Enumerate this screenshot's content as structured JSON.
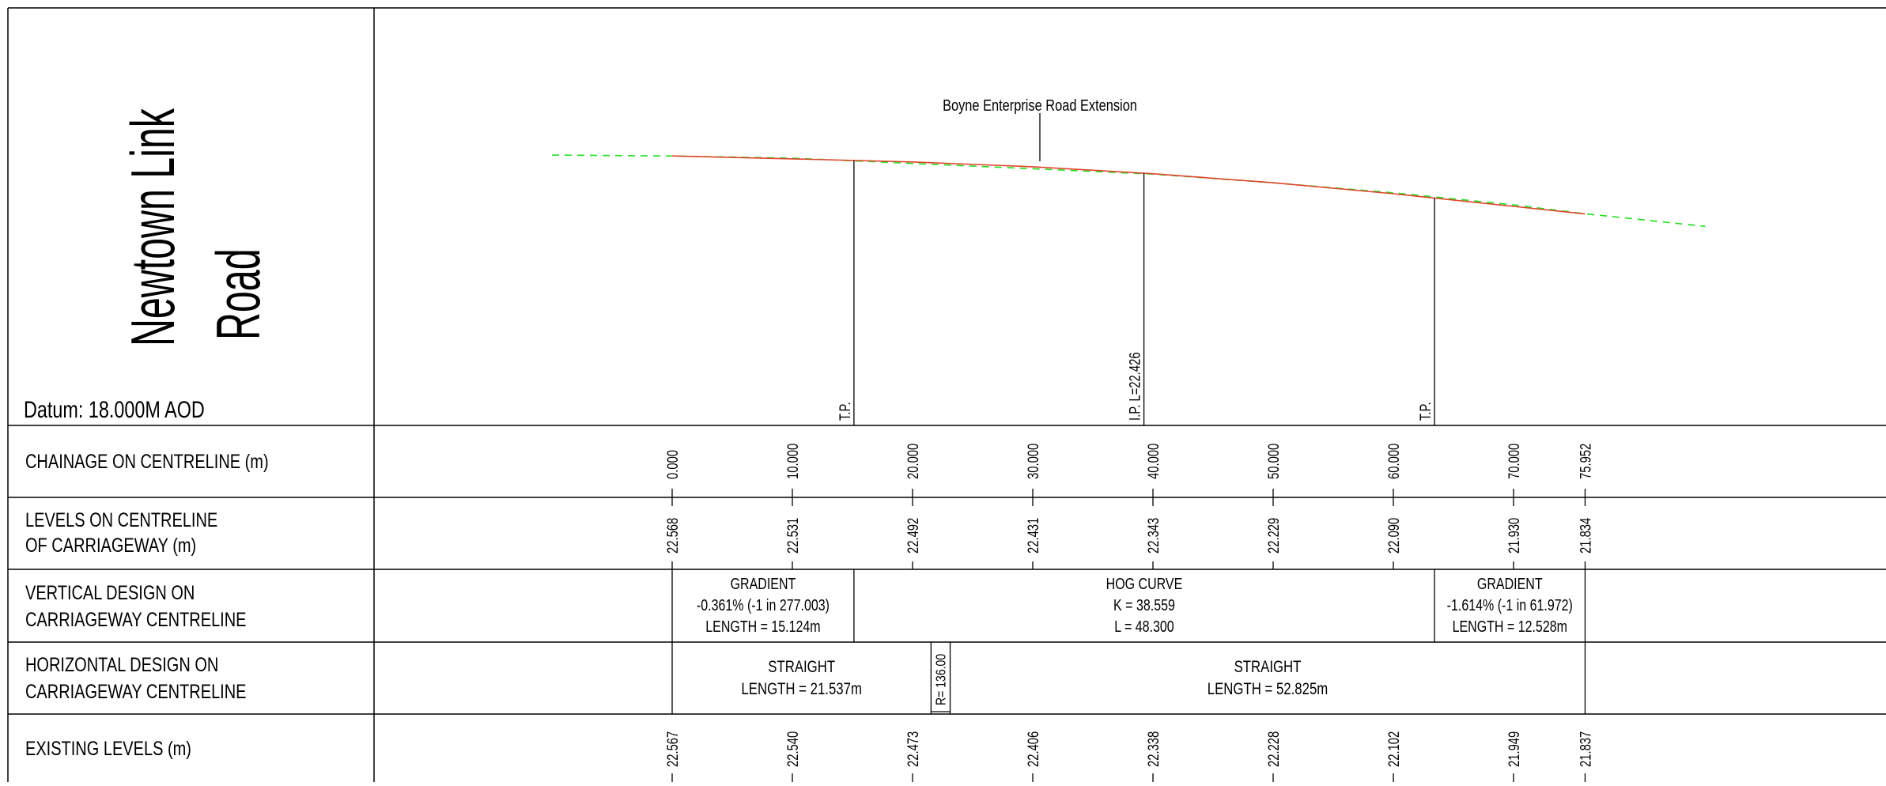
{
  "title": {
    "line1": "Newtown Link",
    "line2": "Road"
  },
  "datum": "Datum: 18.000M AOD",
  "profile": {
    "road_label": "Boyne Enterprise Road Extension",
    "design_line_color": "#e0452a",
    "existing_line_color": "#22dd22",
    "markers": [
      {
        "ch": 15.124,
        "label": "T.P."
      },
      {
        "ch": 39.25,
        "label": "I.P. L=22.426"
      },
      {
        "ch": 63.424,
        "label": "T.P."
      }
    ]
  },
  "rows": {
    "chainage_label": "CHAINAGE ON CENTRELINE (m)",
    "levels_label_1": "LEVELS ON CENTRELINE",
    "levels_label_2": "OF CARRIAGEWAY (m)",
    "vertical_label_1": "VERTICAL DESIGN ON",
    "vertical_label_2": "CARRIAGEWAY CENTRELINE",
    "horizontal_label_1": "HORIZONTAL DESIGN ON",
    "horizontal_label_2": "CARRIAGEWAY CENTRELINE",
    "existing_label": "EXISTING LEVELS (m)"
  },
  "stations": [
    {
      "ch": 0,
      "chainage": "0.000",
      "level": "22.568",
      "existing": "22.567"
    },
    {
      "ch": 10,
      "chainage": "10.000",
      "level": "22.531",
      "existing": "22.540"
    },
    {
      "ch": 20,
      "chainage": "20.000",
      "level": "22.492",
      "existing": "22.473"
    },
    {
      "ch": 30,
      "chainage": "30.000",
      "level": "22.431",
      "existing": "22.406"
    },
    {
      "ch": 40,
      "chainage": "40.000",
      "level": "22.343",
      "existing": "22.338"
    },
    {
      "ch": 50,
      "chainage": "50.000",
      "level": "22.229",
      "existing": "22.228"
    },
    {
      "ch": 60,
      "chainage": "60.000",
      "level": "22.090",
      "existing": "22.102"
    },
    {
      "ch": 70,
      "chainage": "70.000",
      "level": "21.930",
      "existing": "21.949"
    },
    {
      "ch": 75.952,
      "chainage": "75.952",
      "level": "21.834",
      "existing": "21.837"
    }
  ],
  "vertical_design": [
    {
      "start": 0,
      "end": 15.124,
      "lines": [
        "GRADIENT",
        "-0.361% (-1 in 277.003)",
        "LENGTH = 15.124m"
      ]
    },
    {
      "start": 15.124,
      "end": 63.424,
      "lines": [
        "HOG CURVE",
        "K = 38.559",
        "L = 48.300"
      ]
    },
    {
      "start": 63.424,
      "end": 75.952,
      "lines": [
        "GRADIENT",
        "-1.614% (-1 in 61.972)",
        "LENGTH = 12.528m"
      ]
    }
  ],
  "horizontal_design": [
    {
      "start": 0,
      "end": 21.537,
      "type": "text",
      "lines": [
        "STRAIGHT",
        "LENGTH = 21.537m"
      ]
    },
    {
      "start": 21.537,
      "end": 23.127,
      "type": "rotated",
      "lines": [
        "R= 136.00"
      ]
    },
    {
      "start": 23.127,
      "end": 75.952,
      "type": "text",
      "lines": [
        "STRAIGHT",
        "LENGTH = 52.825m"
      ]
    }
  ]
}
